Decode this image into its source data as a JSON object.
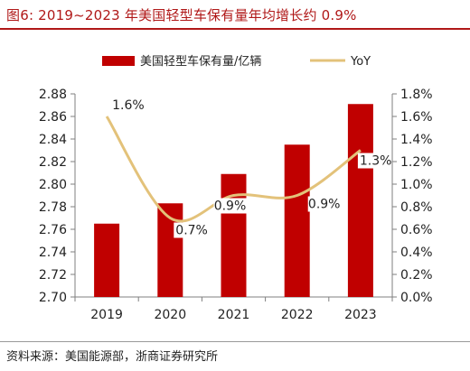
{
  "title": "图6:  2019~2023 年美国轻型车保有量年均增长约 0.9%",
  "source": "资料来源：美国能源部，浙商证券研究所",
  "chart_data": {
    "type": "bar",
    "categories": [
      "2019",
      "2020",
      "2021",
      "2022",
      "2023"
    ],
    "series": [
      {
        "name": "美国轻型车保有量/亿辆",
        "type": "bar",
        "axis": "left",
        "values": [
          2.765,
          2.783,
          2.809,
          2.835,
          2.871
        ],
        "color": "#c00000"
      },
      {
        "name": "YoY",
        "type": "line",
        "axis": "right",
        "values": [
          1.6,
          0.7,
          0.9,
          0.9,
          1.3
        ],
        "labels": [
          "1.6%",
          "0.7%",
          "0.9%",
          "0.9%",
          "1.3%"
        ],
        "color": "#e3c27a"
      }
    ],
    "y_left": {
      "lim": [
        2.7,
        2.88
      ],
      "ticks": [
        "2.70",
        "2.72",
        "2.74",
        "2.76",
        "2.78",
        "2.80",
        "2.82",
        "2.84",
        "2.86",
        "2.88"
      ]
    },
    "y_right": {
      "lim": [
        0,
        1.8
      ],
      "ticks": [
        "0.0%",
        "0.2%",
        "0.4%",
        "0.6%",
        "0.8%",
        "1.0%",
        "1.2%",
        "1.4%",
        "1.6%",
        "1.8%"
      ]
    },
    "grid": false,
    "legend_position": "top"
  }
}
